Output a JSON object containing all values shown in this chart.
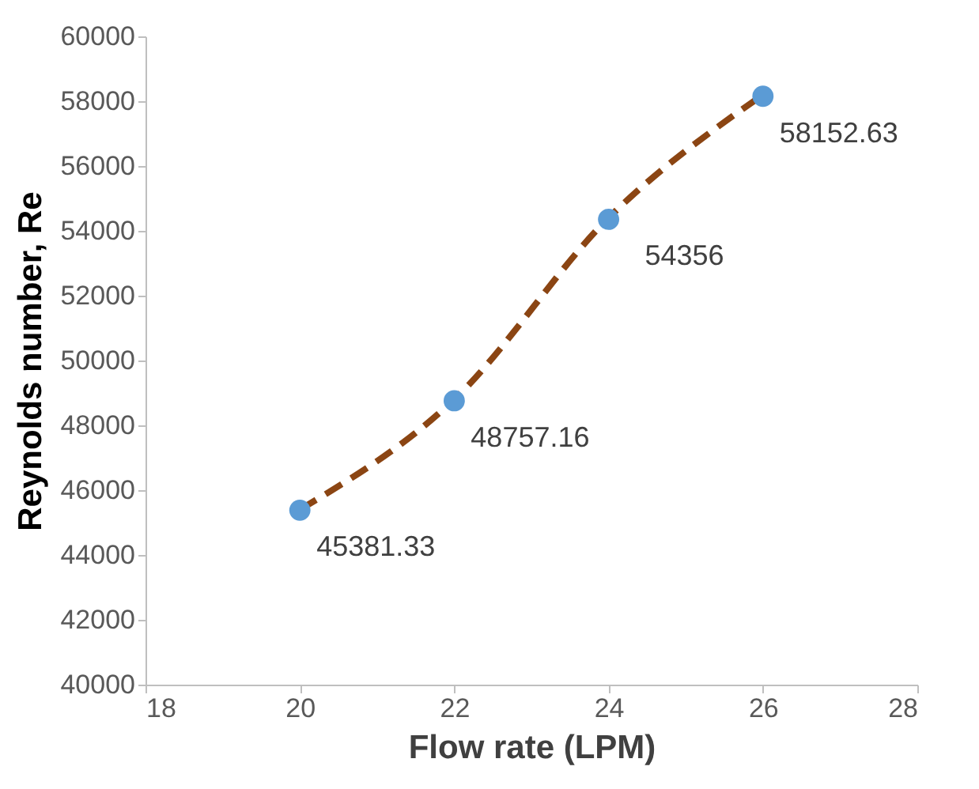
{
  "chart_data": {
    "type": "scatter",
    "xlabel": "Flow rate (LPM)",
    "ylabel": "Reynolds number, Re",
    "x": [
      20,
      22,
      24,
      26
    ],
    "xlim": [
      18,
      28
    ],
    "xticks": [
      18,
      20,
      22,
      24,
      26,
      28
    ],
    "ylim": [
      40000,
      60000
    ],
    "yticks": [
      40000,
      42000,
      44000,
      46000,
      48000,
      50000,
      52000,
      54000,
      56000,
      58000,
      60000
    ],
    "grid": false,
    "series": [
      {
        "type": "line",
        "color": "#8b4513",
        "line_style": "dashed",
        "marker": "none",
        "values": [
          45400,
          48800,
          54400,
          58200
        ]
      },
      {
        "color": "#5b9bd5",
        "marker": "circle",
        "values": [
          45381.33,
          48757.16,
          54356,
          58152.63
        ],
        "value_labels": [
          "45381.33",
          "48757.16",
          "54356",
          "58152.63"
        ]
      }
    ]
  }
}
